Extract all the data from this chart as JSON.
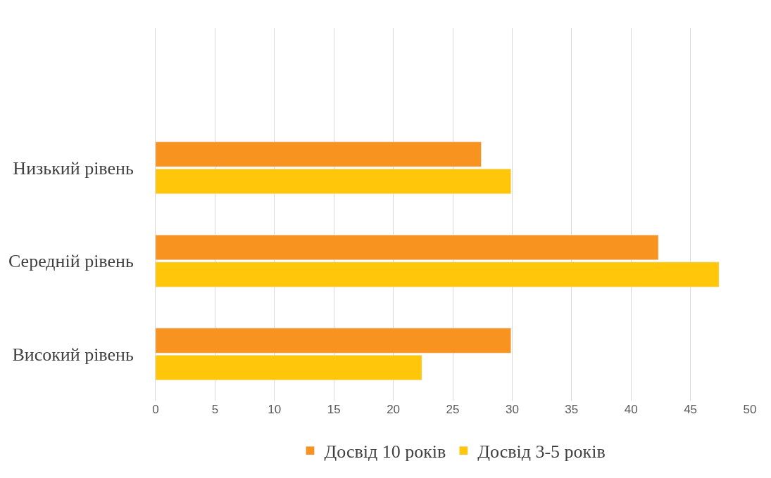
{
  "chart_data": {
    "type": "bar",
    "orientation": "horizontal",
    "categories": [
      null,
      "Низький рівень",
      "Середній рівень",
      "Високий рівень"
    ],
    "series": [
      {
        "name": "Досвід 10 років",
        "color": "#f7931e",
        "values": [
          null,
          27.4,
          42.3,
          29.9
        ]
      },
      {
        "name": "Досвід 3-5 років",
        "color": "#ffc60a",
        "values": [
          null,
          29.9,
          47.4,
          22.4
        ]
      }
    ],
    "xlim": [
      0,
      50
    ],
    "xticks": [
      0,
      5,
      10,
      15,
      20,
      25,
      30,
      35,
      40,
      45,
      50
    ],
    "grid": "x",
    "legend": "bottom"
  }
}
